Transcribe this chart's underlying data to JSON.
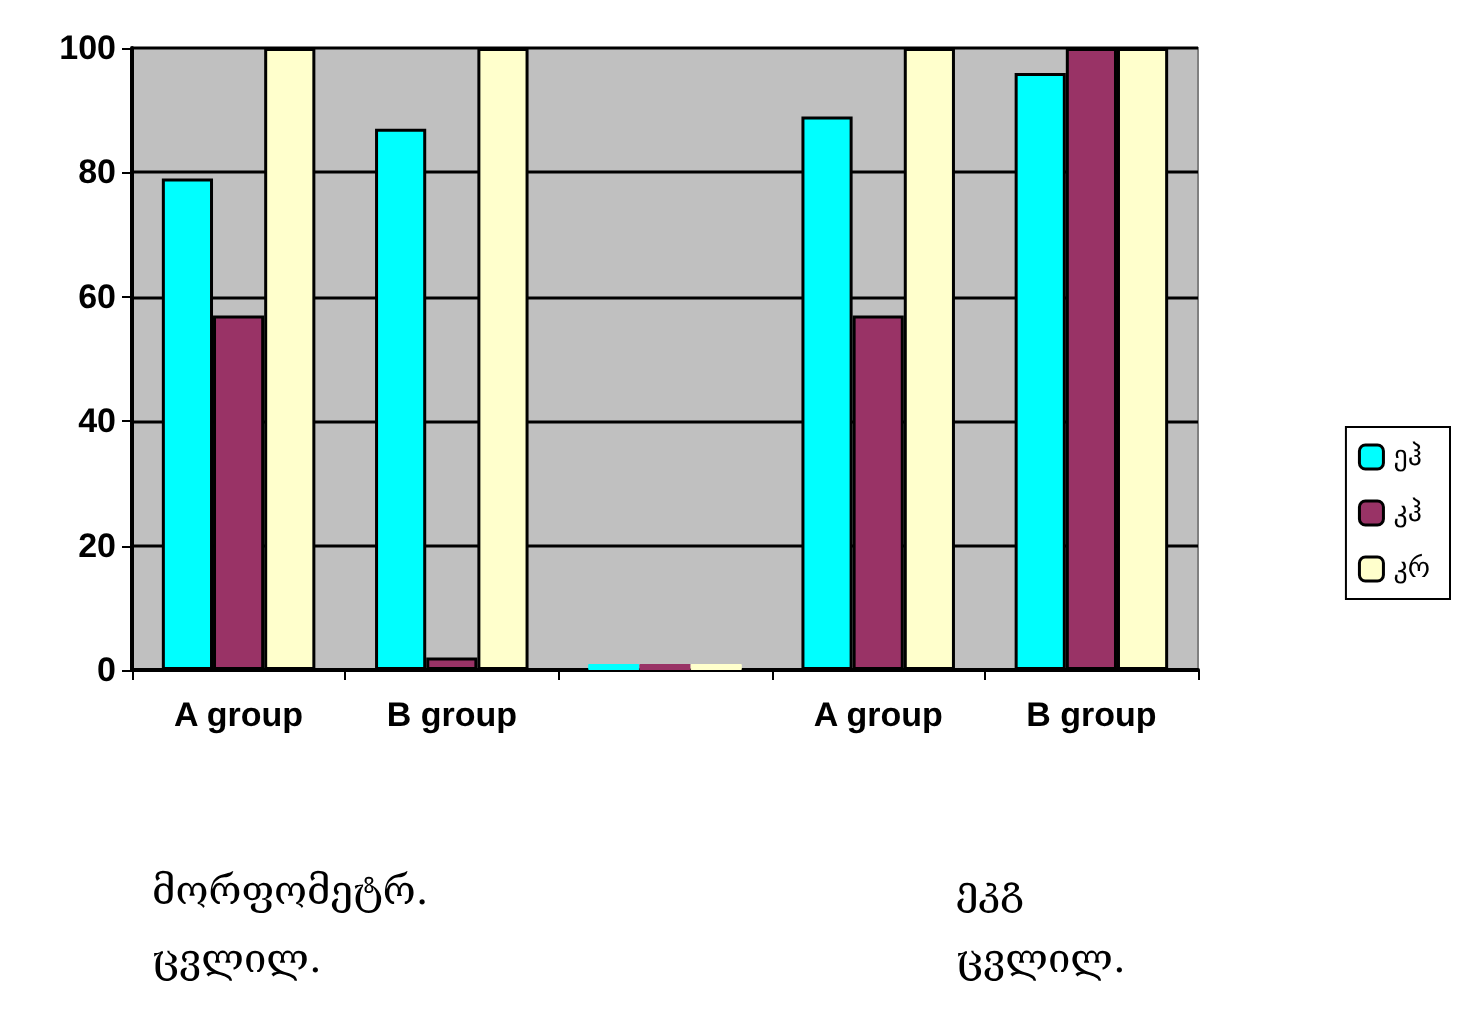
{
  "chart_data": {
    "type": "bar",
    "categories": [
      "A group",
      "B group",
      null,
      "A group",
      "B group"
    ],
    "series": [
      {
        "name": "ეჰ",
        "color": "#00ffff",
        "values": [
          79,
          87,
          0,
          89,
          96
        ]
      },
      {
        "name": "კჰ",
        "color": "#993366",
        "values": [
          57,
          2,
          0,
          57,
          100
        ]
      },
      {
        "name": "კრ",
        "color": "#ffffcc",
        "values": [
          100,
          100,
          0,
          100,
          100
        ]
      }
    ],
    "ylim": [
      0,
      100
    ],
    "yticks": [
      0,
      20,
      40,
      60,
      80,
      100
    ],
    "grid": "y",
    "legend": "right",
    "annotations": [
      "მორფომეტრ.\nცვლილ.",
      "ეკგ\nცვლილ."
    ]
  }
}
